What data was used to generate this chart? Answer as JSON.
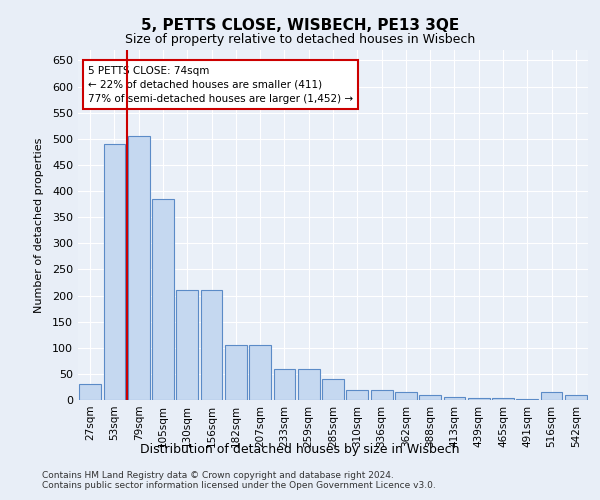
{
  "title": "5, PETTS CLOSE, WISBECH, PE13 3QE",
  "subtitle": "Size of property relative to detached houses in Wisbech",
  "xlabel": "Distribution of detached houses by size in Wisbech",
  "ylabel": "Number of detached properties",
  "categories": [
    "27sqm",
    "53sqm",
    "79sqm",
    "105sqm",
    "130sqm",
    "156sqm",
    "182sqm",
    "207sqm",
    "233sqm",
    "259sqm",
    "285sqm",
    "310sqm",
    "336sqm",
    "362sqm",
    "388sqm",
    "413sqm",
    "439sqm",
    "465sqm",
    "491sqm",
    "516sqm",
    "542sqm"
  ],
  "values": [
    30,
    490,
    505,
    385,
    210,
    210,
    105,
    105,
    60,
    60,
    40,
    20,
    20,
    15,
    10,
    5,
    3,
    3,
    1,
    15,
    10
  ],
  "bar_color": "#c5d8f0",
  "bar_edge_color": "#5b8bc7",
  "vline_color": "#cc0000",
  "annotation_text": "5 PETTS CLOSE: 74sqm\n← 22% of detached houses are smaller (411)\n77% of semi-detached houses are larger (1,452) →",
  "annotation_box_color": "#cc0000",
  "ylim": [
    0,
    670
  ],
  "yticks": [
    0,
    50,
    100,
    150,
    200,
    250,
    300,
    350,
    400,
    450,
    500,
    550,
    600,
    650
  ],
  "footer1": "Contains HM Land Registry data © Crown copyright and database right 2024.",
  "footer2": "Contains public sector information licensed under the Open Government Licence v3.0.",
  "bg_color": "#e8eef7",
  "plot_bg_color": "#eaf0f8"
}
